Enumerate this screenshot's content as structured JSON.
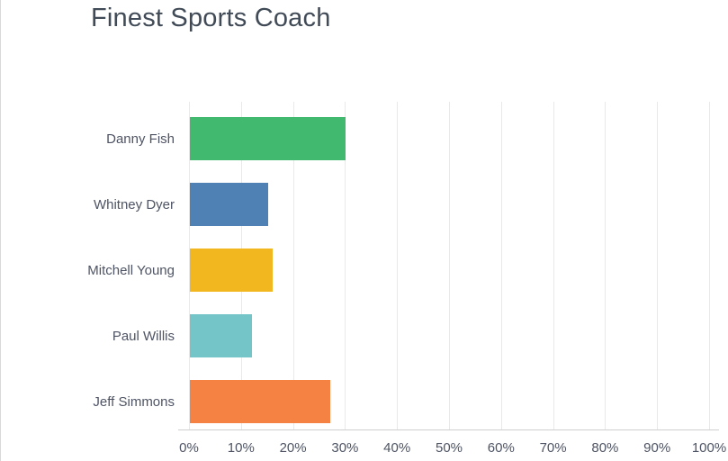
{
  "title": "Finest Sports Coach",
  "chart_data": {
    "type": "bar",
    "orientation": "horizontal",
    "title": "Finest Sports Coach",
    "categories": [
      "Danny Fish",
      "Whitney Dyer",
      "Mitchell Young",
      "Paul Willis",
      "Jeff Simmons"
    ],
    "values": [
      30,
      15,
      16,
      12,
      27
    ],
    "unit": "%",
    "bar_colors": [
      "#41b96e",
      "#5081b5",
      "#f2b71e",
      "#73c5c8",
      "#f58142"
    ],
    "x_ticks": [
      "0%",
      "10%",
      "20%",
      "30%",
      "40%",
      "50%",
      "60%",
      "70%",
      "80%",
      "90%",
      "100%"
    ],
    "xlim": [
      0,
      100
    ],
    "xlabel": "",
    "ylabel": "",
    "grid": "vertical",
    "legend": "none"
  },
  "colors": {
    "title_text": "#414b57",
    "label_text": "#4e5464",
    "tick_text": "#4e5464",
    "gridline": "#e9e9e9",
    "axis_line": "#cfcfcf",
    "page_border": "#d9d9d9",
    "background": "#ffffff"
  }
}
